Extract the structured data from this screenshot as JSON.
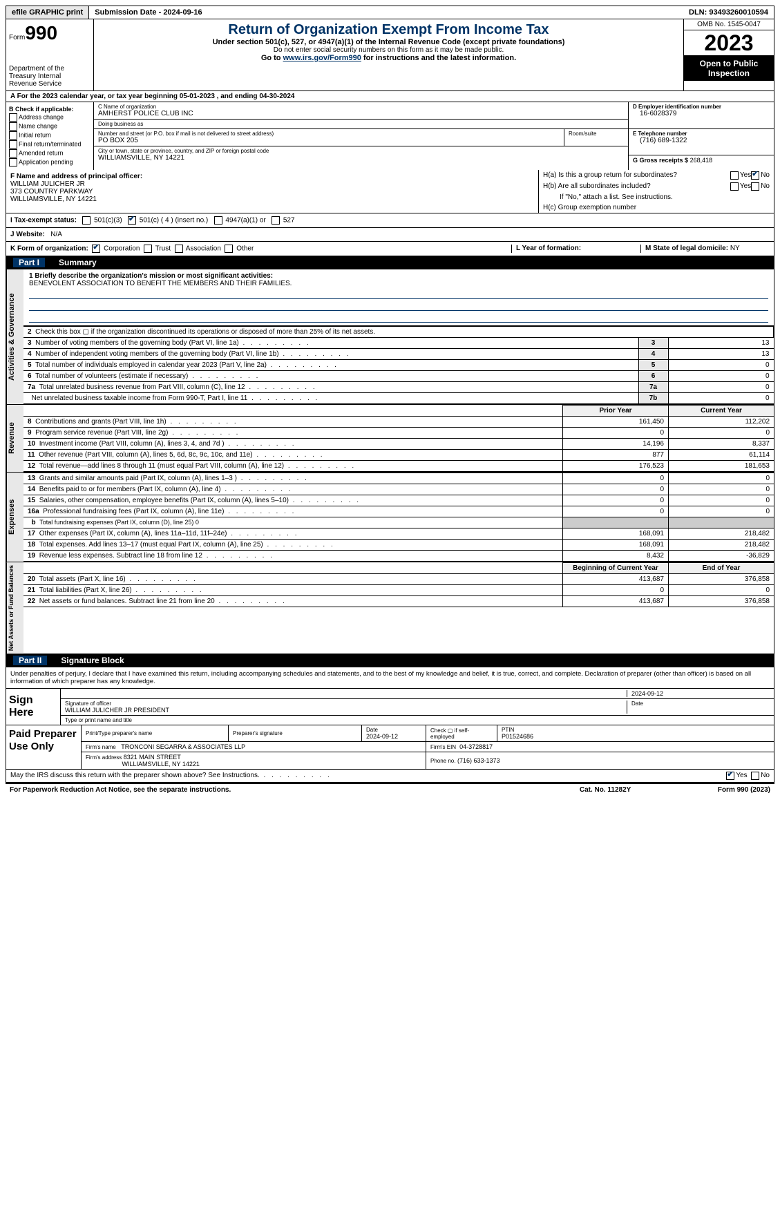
{
  "topbar": {
    "efile": "efile GRAPHIC print",
    "submission": "Submission Date - 2024-09-16",
    "dln": "DLN: 93493260010594"
  },
  "header": {
    "form_word": "Form",
    "form_num": "990",
    "title": "Return of Organization Exempt From Income Tax",
    "sub1": "Under section 501(c), 527, or 4947(a)(1) of the Internal Revenue Code (except private foundations)",
    "sub2": "Do not enter social security numbers on this form as it may be made public.",
    "sub3_pre": "Go to ",
    "sub3_link": "www.irs.gov/Form990",
    "sub3_post": " for instructions and the latest information.",
    "dept": "Department of the Treasury Internal Revenue Service",
    "omb": "OMB No. 1545-0047",
    "year": "2023",
    "open": "Open to Public Inspection"
  },
  "rowA": "A   For the 2023 calendar year, or tax year beginning 05-01-2023   , and ending 04-30-2024",
  "boxB": {
    "label": "B Check if applicable:",
    "items": [
      "Address change",
      "Name change",
      "Initial return",
      "Final return/terminated",
      "Amended return",
      "Application pending"
    ]
  },
  "boxC": {
    "name_label": "C Name of organization",
    "name": "AMHERST POLICE CLUB INC",
    "dba_label": "Doing business as",
    "dba": "",
    "addr_label": "Number and street (or P.O. box if mail is not delivered to street address)",
    "addr": "PO BOX 205",
    "room_label": "Room/suite",
    "city_label": "City or town, state or province, country, and ZIP or foreign postal code",
    "city": "WILLIAMSVILLE, NY  14221"
  },
  "boxD": {
    "label": "D Employer identification number",
    "val": "16-6028379"
  },
  "boxE": {
    "label": "E Telephone number",
    "val": "(716) 689-1322"
  },
  "boxG": {
    "label": "G Gross receipts $",
    "val": "268,418"
  },
  "boxF": {
    "label": "F  Name and address of principal officer:",
    "name": "WILLIAM JULICHER JR",
    "addr1": "373 COUNTRY PARKWAY",
    "addr2": "WILLIAMSVILLE, NY  14221"
  },
  "boxH": {
    "a": "H(a)  Is this a group return for subordinates?",
    "b": "H(b)  Are all subordinates included?",
    "b_note": "If \"No,\" attach a list. See instructions.",
    "c": "H(c)  Group exemption number",
    "yes": "Yes",
    "no": "No"
  },
  "rowI": {
    "label": "I   Tax-exempt status:",
    "opts": [
      "501(c)(3)",
      "501(c) ( 4 ) (insert no.)",
      "4947(a)(1) or",
      "527"
    ]
  },
  "rowJ": {
    "label": "J   Website:",
    "val": "N/A"
  },
  "rowK": {
    "label": "K Form of organization:",
    "opts": [
      "Corporation",
      "Trust",
      "Association",
      "Other"
    ]
  },
  "rowL": {
    "label": "L Year of formation:",
    "val": ""
  },
  "rowM": {
    "label": "M State of legal domicile:",
    "val": "NY"
  },
  "part1": {
    "num": "Part I",
    "title": "Summary"
  },
  "side_labels": {
    "gov": "Activities & Governance",
    "rev": "Revenue",
    "exp": "Expenses",
    "net": "Net Assets or Fund Balances"
  },
  "mission": {
    "label": "1   Briefly describe the organization's mission or most significant activities:",
    "text": "BENEVOLENT ASSOCIATION TO BENEFIT THE MEMBERS AND THEIR FAMILIES."
  },
  "gov_rows": [
    {
      "n": "2",
      "t": "Check this box  ▢  if the organization discontinued its operations or disposed of more than 25% of its net assets.",
      "no_val": true
    },
    {
      "n": "3",
      "t": "Number of voting members of the governing body (Part VI, line 1a)",
      "k": "3",
      "v": "13"
    },
    {
      "n": "4",
      "t": "Number of independent voting members of the governing body (Part VI, line 1b)",
      "k": "4",
      "v": "13"
    },
    {
      "n": "5",
      "t": "Total number of individuals employed in calendar year 2023 (Part V, line 2a)",
      "k": "5",
      "v": "0"
    },
    {
      "n": "6",
      "t": "Total number of volunteers (estimate if necessary)",
      "k": "6",
      "v": "0"
    },
    {
      "n": "7a",
      "t": "Total unrelated business revenue from Part VIII, column (C), line 12",
      "k": "7a",
      "v": "0"
    },
    {
      "n": "",
      "t": "Net unrelated business taxable income from Form 990-T, Part I, line 11",
      "k": "7b",
      "v": "0"
    }
  ],
  "rev_header": {
    "prior": "Prior Year",
    "current": "Current Year"
  },
  "rev_rows": [
    {
      "n": "8",
      "t": "Contributions and grants (Part VIII, line 1h)",
      "p": "161,450",
      "c": "112,202"
    },
    {
      "n": "9",
      "t": "Program service revenue (Part VIII, line 2g)",
      "p": "0",
      "c": "0"
    },
    {
      "n": "10",
      "t": "Investment income (Part VIII, column (A), lines 3, 4, and 7d )",
      "p": "14,196",
      "c": "8,337"
    },
    {
      "n": "11",
      "t": "Other revenue (Part VIII, column (A), lines 5, 6d, 8c, 9c, 10c, and 11e)",
      "p": "877",
      "c": "61,114"
    },
    {
      "n": "12",
      "t": "Total revenue—add lines 8 through 11 (must equal Part VIII, column (A), line 12)",
      "p": "176,523",
      "c": "181,653"
    }
  ],
  "exp_rows": [
    {
      "n": "13",
      "t": "Grants and similar amounts paid (Part IX, column (A), lines 1–3 )",
      "p": "0",
      "c": "0"
    },
    {
      "n": "14",
      "t": "Benefits paid to or for members (Part IX, column (A), line 4)",
      "p": "0",
      "c": "0"
    },
    {
      "n": "15",
      "t": "Salaries, other compensation, employee benefits (Part IX, column (A), lines 5–10)",
      "p": "0",
      "c": "0"
    },
    {
      "n": "16a",
      "t": "Professional fundraising fees (Part IX, column (A), line 11e)",
      "p": "0",
      "c": "0"
    },
    {
      "n": "b",
      "t": "Total fundraising expenses (Part IX, column (D), line 25) 0",
      "shade": true
    },
    {
      "n": "17",
      "t": "Other expenses (Part IX, column (A), lines 11a–11d, 11f–24e)",
      "p": "168,091",
      "c": "218,482"
    },
    {
      "n": "18",
      "t": "Total expenses. Add lines 13–17 (must equal Part IX, column (A), line 25)",
      "p": "168,091",
      "c": "218,482"
    },
    {
      "n": "19",
      "t": "Revenue less expenses. Subtract line 18 from line 12",
      "p": "8,432",
      "c": "-36,829"
    }
  ],
  "net_header": {
    "begin": "Beginning of Current Year",
    "end": "End of Year"
  },
  "net_rows": [
    {
      "n": "20",
      "t": "Total assets (Part X, line 16)",
      "p": "413,687",
      "c": "376,858"
    },
    {
      "n": "21",
      "t": "Total liabilities (Part X, line 26)",
      "p": "0",
      "c": "0"
    },
    {
      "n": "22",
      "t": "Net assets or fund balances. Subtract line 21 from line 20",
      "p": "413,687",
      "c": "376,858"
    }
  ],
  "part2": {
    "num": "Part II",
    "title": "Signature Block"
  },
  "sig_text": "Under penalties of perjury, I declare that I have examined this return, including accompanying schedules and statements, and to the best of my knowledge and belief, it is true, correct, and complete. Declaration of preparer (other than officer) is based on all information of which preparer has any knowledge.",
  "sign": {
    "left": "Sign Here",
    "sig_label": "Signature of officer",
    "name": "WILLIAM JULICHER JR  PRESIDENT",
    "name_label": "Type or print name and title",
    "date_label": "Date",
    "date": "2024-09-12"
  },
  "paid": {
    "left": "Paid Preparer Use Only",
    "h1": "Print/Type preparer's name",
    "h2": "Preparer's signature",
    "h3_label": "Date",
    "h3": "2024-09-12",
    "h4_label": "Check ▢ if self-employed",
    "h5_label": "PTIN",
    "h5": "P01524686",
    "firm_name_label": "Firm's name",
    "firm_name": "TRONCONI SEGARRA & ASSOCIATES LLP",
    "firm_ein_label": "Firm's EIN",
    "firm_ein": "04-3728817",
    "firm_addr_label": "Firm's address",
    "firm_addr1": "8321 MAIN STREET",
    "firm_addr2": "WILLIAMSVILLE, NY  14221",
    "phone_label": "Phone no.",
    "phone": "(716) 633-1373"
  },
  "discuss": {
    "text": "May the IRS discuss this return with the preparer shown above? See Instructions.",
    "yes": "Yes",
    "no": "No"
  },
  "footer": {
    "left": "For Paperwork Reduction Act Notice, see the separate instructions.",
    "mid": "Cat. No. 11282Y",
    "right_pre": "Form ",
    "right_form": "990",
    "right_post": " (2023)"
  }
}
